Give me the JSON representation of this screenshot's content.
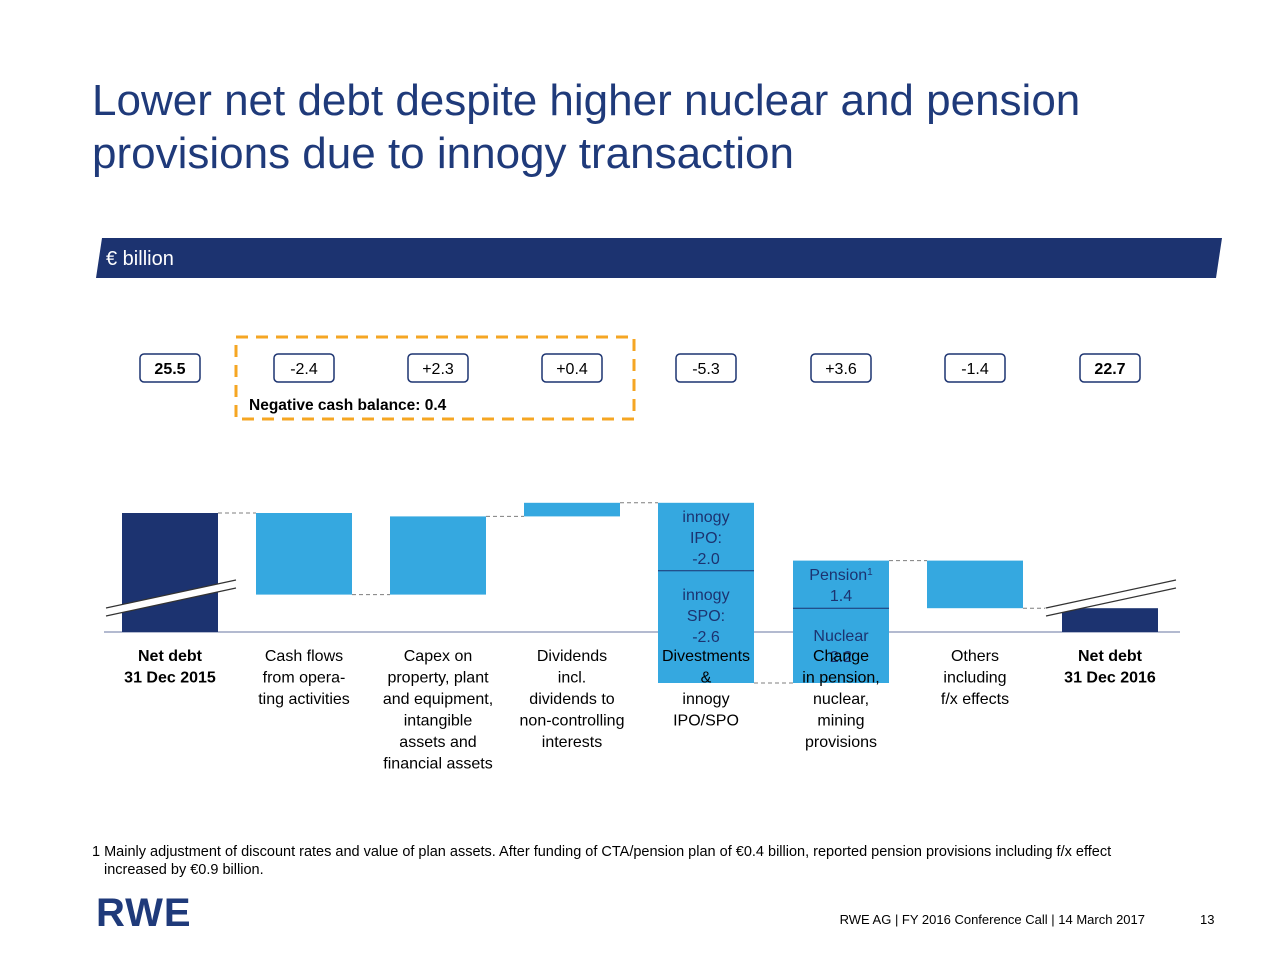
{
  "title": {
    "line1": "Lower net debt despite higher nuclear and pension",
    "line2": "provisions due to innogy transaction"
  },
  "unit_label": "€ billion",
  "colors": {
    "navy": "#1c3370",
    "light_blue": "#35a8e0",
    "highlight_box": "#f5a623"
  },
  "chart_data": {
    "type": "bar",
    "subtype": "waterfall",
    "y_axis_broken": true,
    "categories": [
      [
        "Net debt",
        "31 Dec 2015"
      ],
      [
        "Cash flows",
        "from opera-",
        "ting activities"
      ],
      [
        "Capex on",
        "property, plant",
        "and equipment,",
        "intangible",
        "assets and",
        "financial assets"
      ],
      [
        "Dividends",
        "incl.",
        "dividends to",
        "non-controlling",
        "interests"
      ],
      [
        "Divestments",
        "&",
        "innogy",
        "IPO/SPO"
      ],
      [
        "Change",
        "in pension,",
        "nuclear,",
        "mining",
        "provisions"
      ],
      [
        "Others",
        "including",
        "f/x effects"
      ],
      [
        "Net debt",
        "31 Dec 2016"
      ]
    ],
    "bold_categories": [
      0,
      7
    ],
    "values": [
      25.5,
      -2.4,
      2.3,
      0.4,
      -5.3,
      3.6,
      -1.4,
      22.7
    ],
    "value_labels": [
      "25.5",
      "-2.4",
      "+2.3",
      "+0.4",
      "-5.3",
      "+3.6",
      "-1.4",
      "22.7"
    ],
    "bar_kinds": [
      "total",
      "delta",
      "delta",
      "delta",
      "delta",
      "delta",
      "delta",
      "total"
    ],
    "segments": {
      "4": [
        {
          "label": [
            "innogy",
            "IPO:",
            "-2.0"
          ],
          "value": -2.0
        },
        {
          "label": [
            "innogy",
            "SPO:",
            "-2.6"
          ],
          "value": -2.6
        }
      ],
      "5": [
        {
          "label": [
            "Nuclear",
            "2.2"
          ],
          "value": 2.2
        },
        {
          "label": [
            "Pension",
            "1.4"
          ],
          "superscript": "1",
          "value": 1.4
        }
      ]
    },
    "highlight": {
      "label": "Negative cash balance: 0.4",
      "spans_categories": [
        1,
        3
      ]
    }
  },
  "footnote": {
    "line1": "1 Mainly adjustment of discount rates and value of plan assets. After funding of CTA/pension plan of €0.4 billion, reported pension provisions including f/x effect",
    "line2": "increased by €0.9 billion."
  },
  "logo_text": "RWE",
  "footer_text": "RWE AG | FY 2016 Conference Call | 14 March 2017",
  "page_number": "13"
}
